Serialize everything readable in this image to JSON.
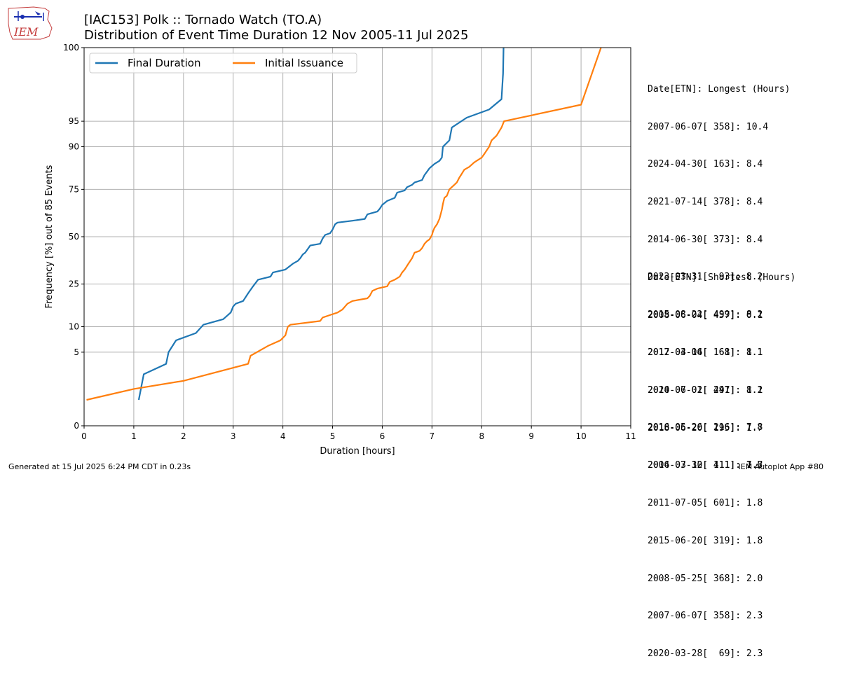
{
  "logo": {
    "text": "IEM"
  },
  "title": {
    "line1": "[IAC153] Polk :: Tornado Watch (TO.A)",
    "line2": "Distribution of Event Time Duration 12 Nov 2005-11 Jul 2025"
  },
  "chart_data": {
    "type": "line",
    "xlabel": "Duration [hours]",
    "ylabel": "Frequency [%] out of 85 Events",
    "xlim": [
      0,
      11
    ],
    "ylim": [
      0,
      100
    ],
    "xticks": [
      0,
      1,
      2,
      3,
      4,
      5,
      6,
      7,
      8,
      9,
      10,
      11
    ],
    "yticks": [
      0,
      5,
      10,
      25,
      50,
      75,
      90,
      95,
      100
    ],
    "grid": true,
    "legend_position": "top-left",
    "series": [
      {
        "name": "Final Duration",
        "color": "#1f77b4",
        "points": [
          [
            1.1,
            1
          ],
          [
            1.2,
            2.5
          ],
          [
            1.65,
            3.5
          ],
          [
            1.7,
            5
          ],
          [
            1.85,
            7
          ],
          [
            2.25,
            8.5
          ],
          [
            2.4,
            10.5
          ],
          [
            2.8,
            12
          ],
          [
            2.95,
            14
          ],
          [
            3.0,
            16
          ],
          [
            3.05,
            17
          ],
          [
            3.2,
            18
          ],
          [
            3.3,
            21
          ],
          [
            3.4,
            24
          ],
          [
            3.5,
            27
          ],
          [
            3.75,
            28.5
          ],
          [
            3.8,
            30.5
          ],
          [
            4.05,
            32
          ],
          [
            4.15,
            34
          ],
          [
            4.2,
            35
          ],
          [
            4.3,
            36.5
          ],
          [
            4.35,
            38
          ],
          [
            4.4,
            40
          ],
          [
            4.45,
            41
          ],
          [
            4.55,
            45
          ],
          [
            4.75,
            46
          ],
          [
            4.8,
            49
          ],
          [
            4.85,
            51
          ],
          [
            4.95,
            52
          ],
          [
            5.0,
            54
          ],
          [
            5.05,
            57
          ],
          [
            5.1,
            58
          ],
          [
            5.4,
            59
          ],
          [
            5.65,
            60
          ],
          [
            5.7,
            62.5
          ],
          [
            5.9,
            64
          ],
          [
            5.95,
            65.5
          ],
          [
            6.0,
            67.5
          ],
          [
            6.1,
            69.5
          ],
          [
            6.25,
            71
          ],
          [
            6.3,
            73.5
          ],
          [
            6.45,
            74.5
          ],
          [
            6.5,
            76
          ],
          [
            6.6,
            77
          ],
          [
            6.65,
            78
          ],
          [
            6.8,
            79
          ],
          [
            6.85,
            81
          ],
          [
            6.95,
            83.5
          ],
          [
            7.05,
            85
          ],
          [
            7.15,
            86
          ],
          [
            7.2,
            87
          ],
          [
            7.22,
            90
          ],
          [
            7.35,
            91.5
          ],
          [
            7.4,
            94
          ],
          [
            7.7,
            95.5
          ],
          [
            8.15,
            96.5
          ],
          [
            8.4,
            97.5
          ],
          [
            8.43,
            99
          ],
          [
            8.44,
            100
          ]
        ]
      },
      {
        "name": "Initial Issuance",
        "color": "#ff7f0e",
        "points": [
          [
            0.05,
            1
          ],
          [
            1.0,
            1.5
          ],
          [
            2.0,
            2
          ],
          [
            3.3,
            3.5
          ],
          [
            3.35,
            4.5
          ],
          [
            3.7,
            6
          ],
          [
            3.95,
            7
          ],
          [
            4.05,
            8
          ],
          [
            4.1,
            10
          ],
          [
            4.15,
            10.5
          ],
          [
            4.75,
            11.5
          ],
          [
            4.8,
            12.5
          ],
          [
            4.9,
            13
          ],
          [
            5.1,
            14
          ],
          [
            5.2,
            15
          ],
          [
            5.25,
            16
          ],
          [
            5.3,
            17
          ],
          [
            5.4,
            18
          ],
          [
            5.7,
            19
          ],
          [
            5.75,
            20
          ],
          [
            5.8,
            22
          ],
          [
            5.9,
            23
          ],
          [
            6.1,
            24
          ],
          [
            6.15,
            26
          ],
          [
            6.25,
            27
          ],
          [
            6.35,
            28.5
          ],
          [
            6.4,
            30.5
          ],
          [
            6.45,
            32
          ],
          [
            6.5,
            34
          ],
          [
            6.55,
            36
          ],
          [
            6.6,
            38
          ],
          [
            6.65,
            41
          ],
          [
            6.75,
            42
          ],
          [
            6.8,
            43.5
          ],
          [
            6.85,
            46
          ],
          [
            6.9,
            47.5
          ],
          [
            6.95,
            48.5
          ],
          [
            7.0,
            51
          ],
          [
            7.02,
            53
          ],
          [
            7.05,
            55
          ],
          [
            7.1,
            57
          ],
          [
            7.15,
            60
          ],
          [
            7.17,
            62
          ],
          [
            7.2,
            65
          ],
          [
            7.22,
            68
          ],
          [
            7.25,
            71
          ],
          [
            7.3,
            72
          ],
          [
            7.35,
            75
          ],
          [
            7.4,
            76
          ],
          [
            7.45,
            77
          ],
          [
            7.5,
            78
          ],
          [
            7.55,
            80
          ],
          [
            7.6,
            81.5
          ],
          [
            7.65,
            83
          ],
          [
            7.75,
            84
          ],
          [
            7.85,
            85.5
          ],
          [
            8.0,
            87
          ],
          [
            8.05,
            88
          ],
          [
            8.15,
            90
          ],
          [
            8.2,
            91.5
          ],
          [
            8.3,
            92.5
          ],
          [
            8.4,
            94
          ],
          [
            8.45,
            95
          ],
          [
            10.0,
            97
          ],
          [
            10.4,
            100
          ]
        ]
      }
    ]
  },
  "stats": {
    "longest": {
      "header": "Date[ETN]: Longest (Hours)",
      "rows": [
        "2007-06-07[ 358]: 10.4",
        "2024-04-30[ 163]: 8.4",
        "2021-07-14[ 378]: 8.4",
        "2014-06-30[ 373]: 8.4",
        "2023-03-31[  93]: 8.2",
        "2015-08-22[ 499]: 8.2",
        "2017-03-06[  61]: 8.1",
        "2010-06-01[ 241]: 8.1",
        "2016-05-26[ 216]: 7.8",
        "2006-03-30[ 111]: 7.8"
      ]
    },
    "shortest": {
      "header": "Date[ETN]: Shortest (Hours)",
      "rows": [
        "2008-06-04[ 457]: 0.1",
        "2012-04-14[ 168]: 1.1",
        "2024-07-02[ 497]: 1.2",
        "2018-06-20[ 195]: 1.7",
        "2014-07-12[ 411]: 1.7",
        "2011-07-05[ 601]: 1.8",
        "2015-06-20[ 319]: 1.8",
        "2008-05-25[ 368]: 2.0",
        "2007-06-07[ 358]: 2.3",
        "2020-03-28[  69]: 2.3"
      ]
    }
  },
  "footer": {
    "left": "Generated at 15 Jul 2025 6:24 PM CDT in 0.23s",
    "right": "IEM Autoplot App #80"
  }
}
